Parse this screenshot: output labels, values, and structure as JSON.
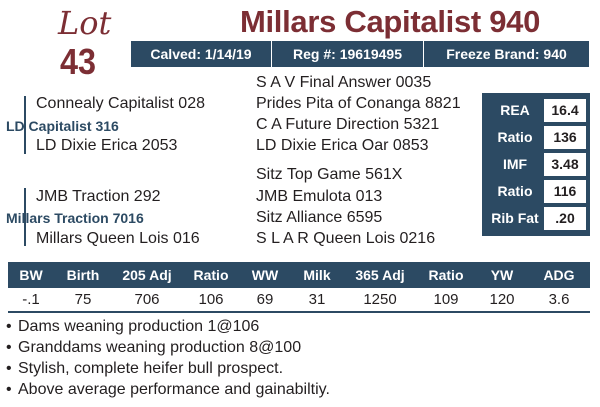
{
  "lot": {
    "word": "Lot",
    "number": "43"
  },
  "animal": {
    "name": "Millars Capitalist 940"
  },
  "info": {
    "calved": "Calved: 1/14/19",
    "reg": "Reg #: 19619495",
    "freeze_brand": "Freeze Brand: 940"
  },
  "pedigree": {
    "sire_sire": "Connealy Capitalist 028",
    "sire": "LD Capitalist 316",
    "sire_dam": "LD Dixie Erica 2053",
    "dam_sire_sire": "JMB Traction 292",
    "dam_sire": "Millars Traction 7016",
    "dam": "Millars Queen Lois 016",
    "right": [
      "S A V Final Answer 0035",
      "Prides Pita of Conanga 8821",
      "C A Future Direction 5321",
      "LD Dixie Erica Oar 0853",
      "Sitz Top Game 561X",
      "JMB Emulota 013",
      "Sitz Alliance 6595",
      "S L A R Queen Lois 0216"
    ]
  },
  "carcass": [
    {
      "label": "REA",
      "value": "16.4"
    },
    {
      "label": "Ratio",
      "value": "136"
    },
    {
      "label": "IMF",
      "value": "3.48"
    },
    {
      "label": "Ratio",
      "value": "116"
    },
    {
      "label": "Rib Fat",
      "value": ".20"
    }
  ],
  "performance": {
    "headers": [
      "BW",
      "Birth",
      "205 Adj",
      "Ratio",
      "WW",
      "Milk",
      "365 Adj",
      "Ratio",
      "YW",
      "ADG"
    ],
    "values": [
      "-.1",
      "75",
      "706",
      "106",
      "69",
      "31",
      "1250",
      "109",
      "120",
      "3.6"
    ]
  },
  "notes": [
    "Dams weaning production 1@106",
    "Granddams weaning production 8@100",
    "Stylish, complete heifer bull prospect.",
    "Above average performance and gainabiltiy."
  ],
  "colors": {
    "maroon": "#7c2e34",
    "navy": "#2c4a63"
  }
}
